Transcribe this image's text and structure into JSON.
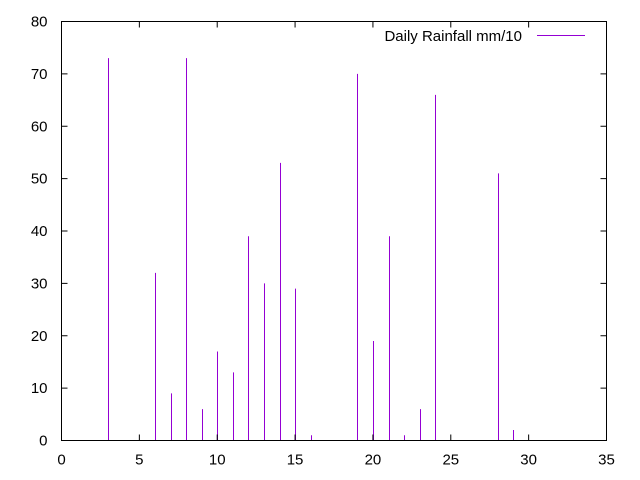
{
  "chart_data": {
    "type": "bar",
    "title": "",
    "xlabel": "",
    "ylabel": "",
    "xlim": [
      0,
      35
    ],
    "ylim": [
      0,
      80
    ],
    "x_ticks": [
      0,
      5,
      10,
      15,
      20,
      25,
      30,
      35
    ],
    "y_ticks": [
      0,
      10,
      20,
      30,
      40,
      50,
      60,
      70,
      80
    ],
    "grid": false,
    "legend_position": "top-right",
    "series": [
      {
        "name": "Daily Rainfall mm/10",
        "color": "#9400d3",
        "style": "impulses",
        "x": [
          1,
          2,
          3,
          4,
          5,
          6,
          7,
          8,
          9,
          10,
          11,
          12,
          13,
          14,
          15,
          16,
          17,
          18,
          19,
          20,
          21,
          22,
          23,
          24,
          25,
          26,
          27,
          28,
          29,
          30
        ],
        "y": [
          0,
          0,
          73,
          0,
          0,
          32,
          9,
          73,
          6,
          17,
          13,
          39,
          30,
          53,
          29,
          1,
          0,
          0,
          70,
          19,
          39,
          1,
          6,
          66,
          0,
          0,
          0,
          51,
          2,
          0
        ]
      }
    ]
  }
}
